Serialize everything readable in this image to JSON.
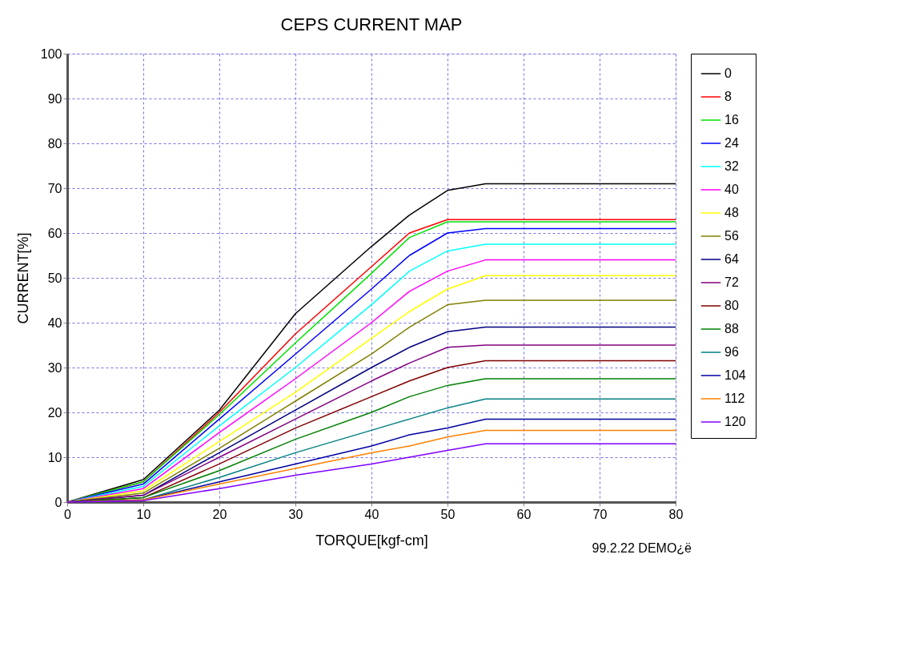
{
  "chart_data": {
    "type": "line",
    "title": "CEPS CURRENT MAP",
    "xlabel": "TORQUE[kgf-cm]",
    "ylabel": "CURRENT[%]",
    "x": [
      0,
      10,
      20,
      30,
      40,
      45,
      50,
      55,
      80
    ],
    "xlim": [
      0,
      80
    ],
    "xticks": [
      0,
      10,
      20,
      30,
      40,
      50,
      60,
      70,
      80
    ],
    "ylim": [
      0,
      100
    ],
    "yticks": [
      0,
      10,
      20,
      30,
      40,
      50,
      60,
      70,
      80,
      90,
      100
    ],
    "grid": true,
    "legend": "right",
    "marker": "none",
    "line_style": "solid",
    "annotations": [
      "99.2.22 DEMO¿ë"
    ],
    "series": [
      {
        "name": "0",
        "color": "#000000",
        "values": [
          0,
          5,
          20.5,
          42,
          57,
          64,
          69.5,
          71,
          71
        ]
      },
      {
        "name": "8",
        "color": "#ff0000",
        "values": [
          0,
          4.5,
          20,
          37.5,
          52.5,
          60,
          63,
          63,
          63
        ]
      },
      {
        "name": "16",
        "color": "#00e000",
        "values": [
          0,
          4.5,
          19.5,
          35.5,
          51,
          59,
          62.5,
          62.5,
          62.5
        ]
      },
      {
        "name": "24",
        "color": "#0000ff",
        "values": [
          0,
          4,
          18.5,
          33,
          47.5,
          55,
          60,
          61,
          61
        ]
      },
      {
        "name": "32",
        "color": "#00ffff",
        "values": [
          0,
          3.5,
          17,
          30,
          44,
          51.5,
          56,
          57.5,
          57.5
        ]
      },
      {
        "name": "40",
        "color": "#ff00ff",
        "values": [
          0,
          3,
          15.5,
          27.5,
          40,
          47,
          51.5,
          54,
          54
        ]
      },
      {
        "name": "48",
        "color": "#ffff00",
        "values": [
          0,
          2.5,
          13.5,
          24.5,
          36.5,
          42.5,
          47.5,
          50.5,
          50.5
        ]
      },
      {
        "name": "56",
        "color": "#808000",
        "values": [
          0,
          2,
          12,
          22.5,
          33,
          39,
          44,
          45,
          45
        ]
      },
      {
        "name": "64",
        "color": "#000080",
        "values": [
          0,
          1.5,
          11,
          20.5,
          30,
          34.5,
          38,
          39,
          39
        ]
      },
      {
        "name": "72",
        "color": "#800080",
        "values": [
          0,
          1.5,
          10,
          18.5,
          27,
          31,
          34.5,
          35,
          35
        ]
      },
      {
        "name": "80",
        "color": "#800000",
        "values": [
          0,
          1,
          8.5,
          16.5,
          23.5,
          27,
          30,
          31.5,
          31.5
        ]
      },
      {
        "name": "88",
        "color": "#008000",
        "values": [
          0,
          1,
          7,
          14,
          20,
          23.5,
          26,
          27.5,
          27.5
        ]
      },
      {
        "name": "96",
        "color": "#008080",
        "values": [
          0,
          0.5,
          5.5,
          11,
          16,
          18.5,
          21,
          23,
          23
        ]
      },
      {
        "name": "104",
        "color": "#0000a0",
        "values": [
          0,
          0.5,
          4.5,
          8.5,
          12.5,
          15,
          16.5,
          18.5,
          18.5
        ]
      },
      {
        "name": "112",
        "color": "#ff8000",
        "values": [
          0,
          0.5,
          4,
          7.5,
          11,
          12.5,
          14.5,
          16,
          16
        ]
      },
      {
        "name": "120",
        "color": "#8000ff",
        "values": [
          0,
          0.3,
          3,
          6,
          8.5,
          10,
          11.5,
          13,
          13
        ]
      }
    ]
  }
}
